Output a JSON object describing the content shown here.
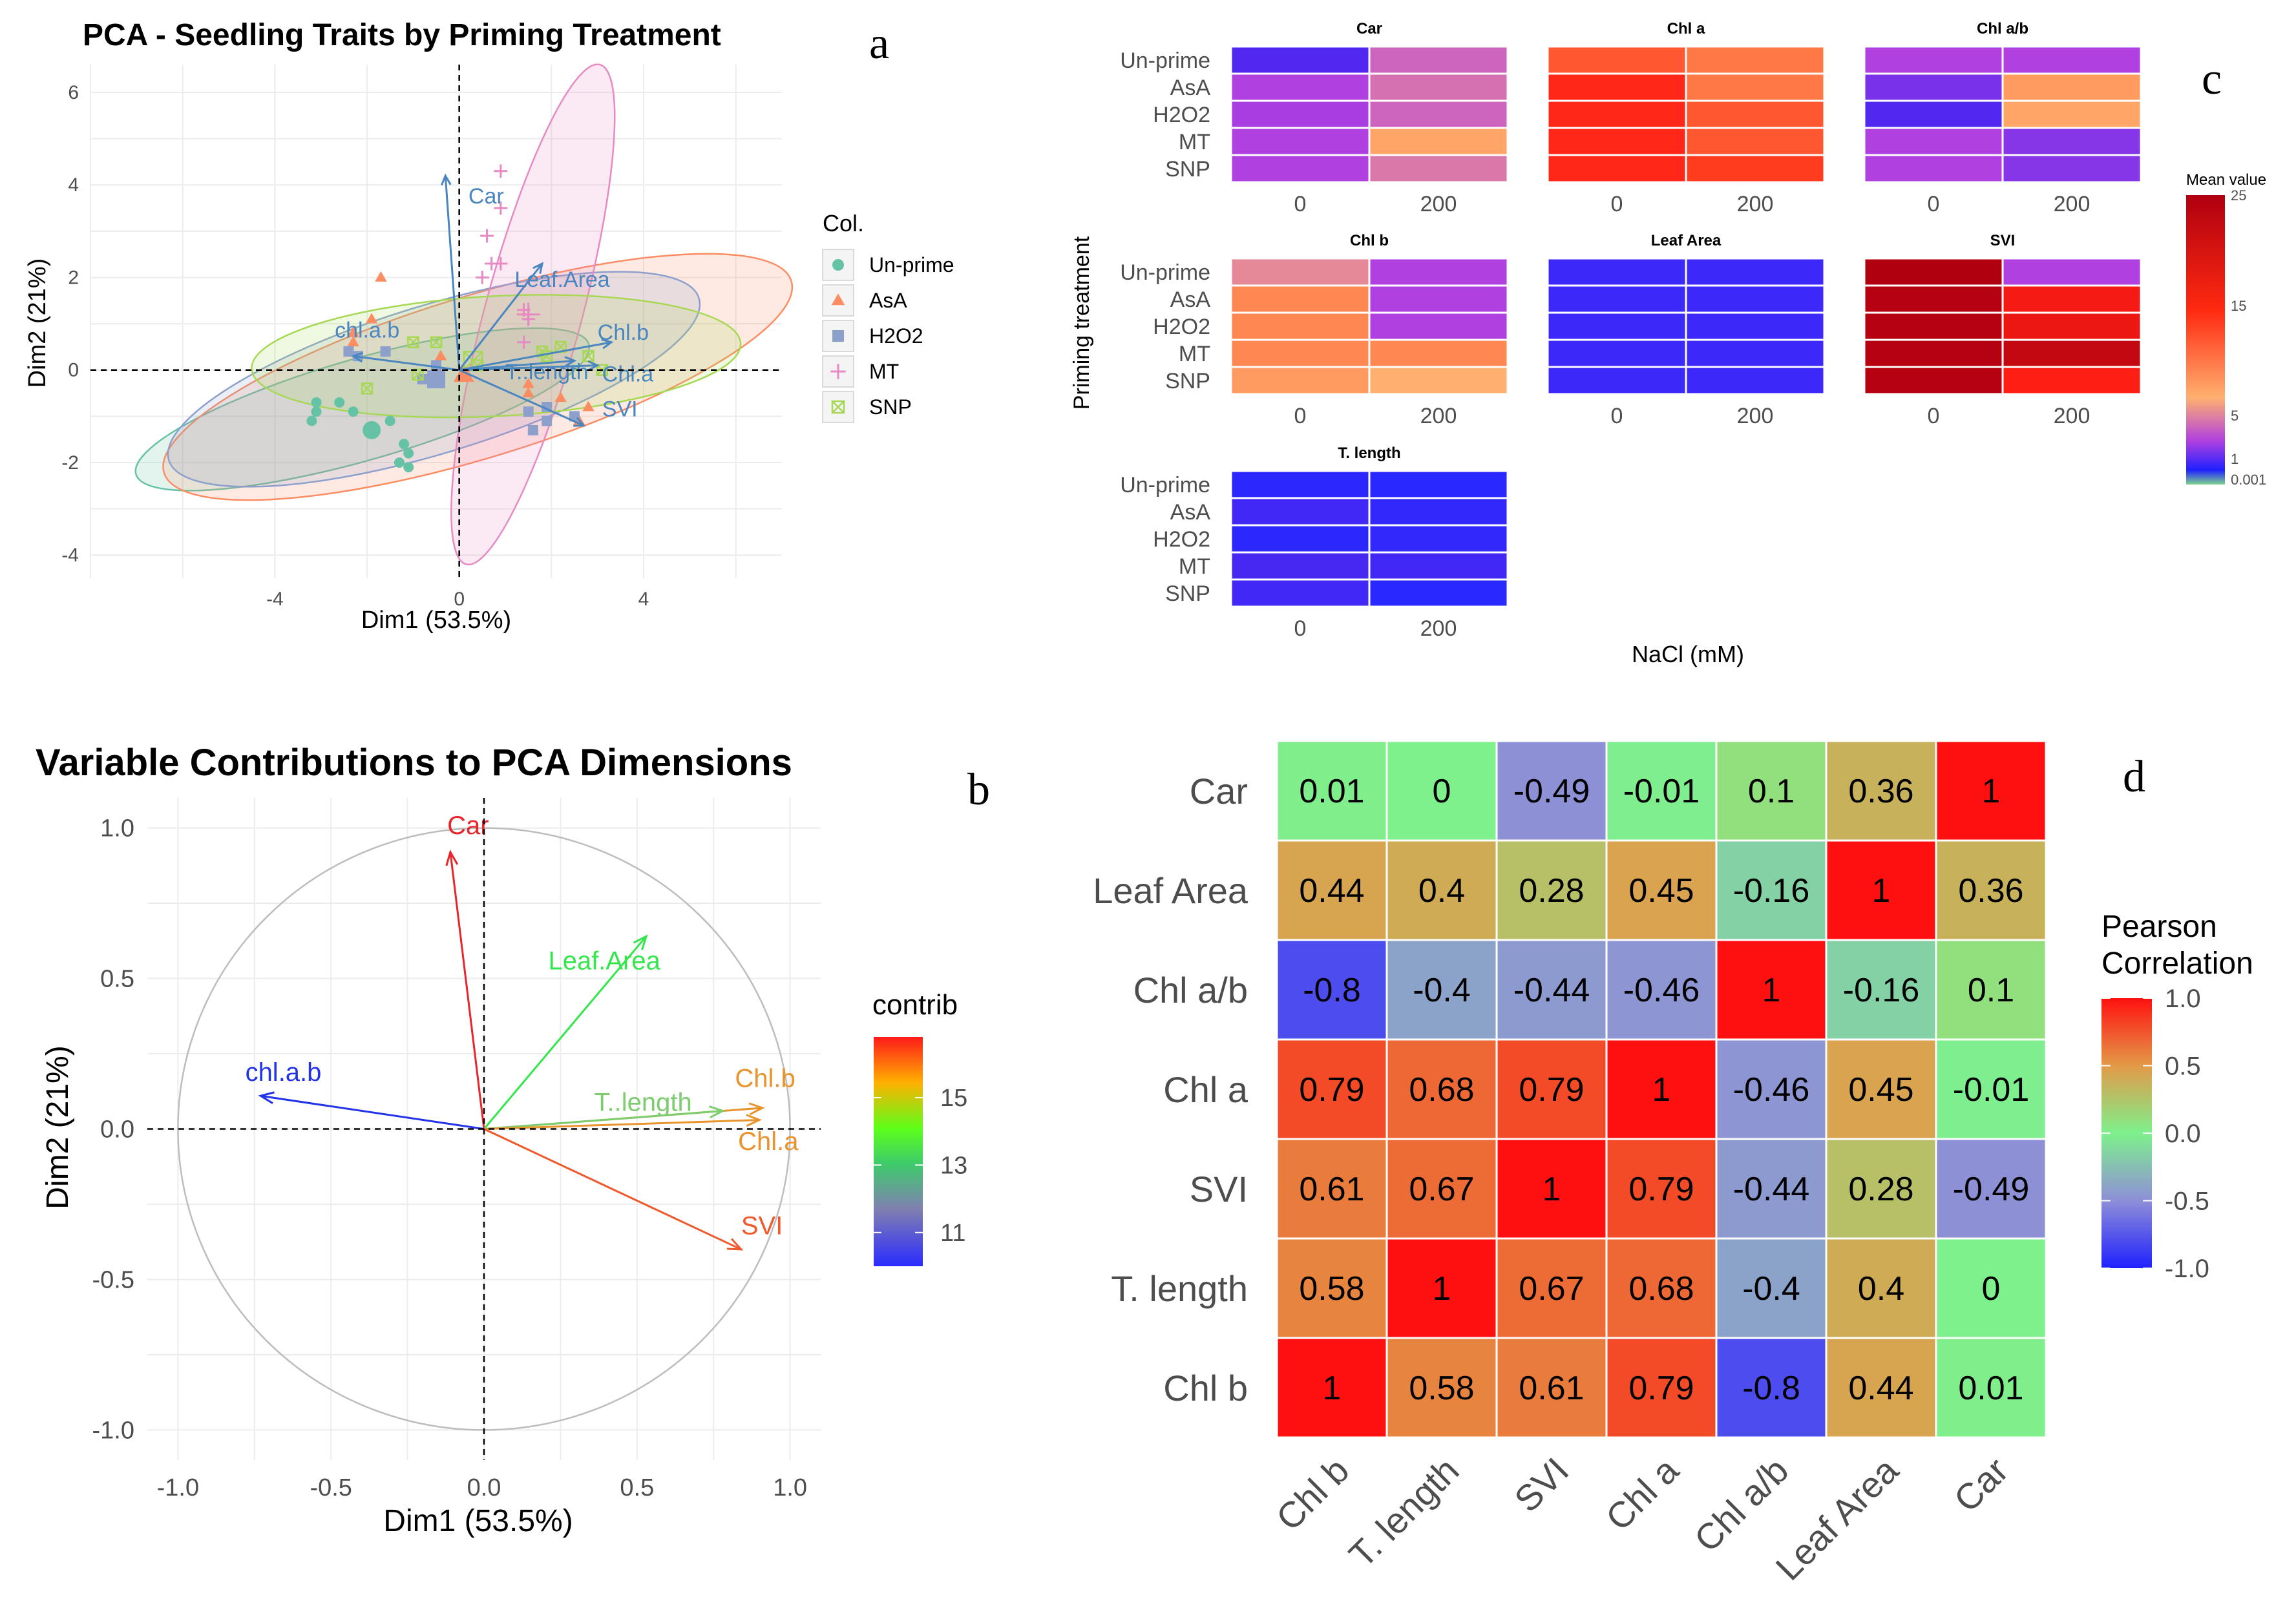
{
  "panel_labels": {
    "a": "a",
    "b": "b",
    "c": "c",
    "d": "d"
  },
  "colors": {
    "unprime": "#66c2a5",
    "asa": "#fc8d62",
    "h2o2": "#8da0cb",
    "mt": "#e78ac3",
    "snp": "#a6d854",
    "pca_arrow": "#4a86c0",
    "grid": "#ebebeb",
    "circle": "#bdbdbd"
  },
  "chart_data": [
    {
      "id": "a",
      "type": "scatter",
      "title": "PCA - Seedling Traits by Priming Treatment",
      "xlabel": "Dim1 (53.5%)",
      "ylabel": "Dim2 (21%)",
      "xlim": [
        -8,
        7
      ],
      "ylim": [
        -4.5,
        6.6
      ],
      "xticks": [
        -4,
        0,
        4
      ],
      "yticks": [
        -4,
        -2,
        0,
        2,
        4,
        6
      ],
      "xtick_labels": [
        "-4",
        "0",
        "4"
      ],
      "ytick_labels": [
        "-4",
        "-2",
        "0",
        "2",
        "4",
        "6"
      ],
      "legend": {
        "title": "Col.",
        "position": "right",
        "entries": [
          "Un-prime",
          "AsA",
          "H2O2",
          "MT",
          "SNP"
        ]
      },
      "groups": [
        {
          "name": "Un-prime",
          "color": "#66c2a5",
          "shape": "circle",
          "points": [
            [
              -3.1,
              -0.7
            ],
            [
              -3.1,
              -0.9
            ],
            [
              -3.2,
              -1.1
            ],
            [
              -1.5,
              -1.1
            ],
            [
              -1.2,
              -1.6
            ],
            [
              -1.1,
              -1.8
            ],
            [
              -1.1,
              -2.1
            ],
            [
              -1.3,
              -2
            ],
            [
              -2.6,
              -0.7
            ],
            [
              -2.3,
              -0.9
            ]
          ],
          "mean": [
            -1.9,
            -1.3
          ],
          "ellipse": {
            "cx": -2.1,
            "cy": -0.85,
            "rx": 5.1,
            "ry": 1.1,
            "angle_deg": -16
          }
        },
        {
          "name": "AsA",
          "color": "#fc8d62",
          "shape": "triangle",
          "points": [
            [
              -1.7,
              2
            ],
            [
              -2.3,
              0.8
            ],
            [
              -2.3,
              0.6
            ],
            [
              -1.9,
              1.1
            ],
            [
              1.5,
              -0.5
            ],
            [
              2.2,
              -0.6
            ],
            [
              2.8,
              -0.8
            ],
            [
              2.6,
              -1.1
            ],
            [
              1.5,
              -0.3
            ],
            [
              -0.4,
              0.3
            ]
          ],
          "mean": [
            0.1,
            -0.1
          ],
          "ellipse": {
            "cx": 0.4,
            "cy": -0.15,
            "rx": 7.1,
            "ry": 1.75,
            "angle_deg": -17
          }
        },
        {
          "name": "H2O2",
          "color": "#8da0cb",
          "shape": "square",
          "points": [
            [
              -2.4,
              0.4
            ],
            [
              -2.2,
              0.3
            ],
            [
              -0.5,
              0.1
            ],
            [
              1.5,
              -0.9
            ],
            [
              1.9,
              -0.8
            ],
            [
              2.5,
              -1.0
            ],
            [
              1.6,
              -1.3
            ],
            [
              1.9,
              -1.1
            ],
            [
              -1.6,
              0.4
            ],
            [
              -0.8,
              -0.2
            ]
          ],
          "mean": [
            -0.5,
            -0.2
          ],
          "ellipse": {
            "cx": -0.55,
            "cy": -0.2,
            "rx": 6.0,
            "ry": 1.6,
            "angle_deg": -17
          }
        },
        {
          "name": "MT",
          "color": "#e78ac3",
          "shape": "plus",
          "points": [
            [
              0.9,
              4.3
            ],
            [
              0.9,
              3.5
            ],
            [
              0.6,
              2.9
            ],
            [
              0.7,
              2.3
            ],
            [
              0.5,
              2.0
            ],
            [
              0.9,
              2.3
            ],
            [
              1.5,
              1.1
            ],
            [
              1.4,
              0.6
            ],
            [
              1.5,
              1.2
            ],
            [
              1.4,
              1.3
            ]
          ],
          "mean": [
            1.5,
            1.2
          ],
          "ellipse": {
            "cx": 1.6,
            "cy": 1.2,
            "rx": 5.6,
            "ry": 1.05,
            "angle_deg": -75
          }
        },
        {
          "name": "SNP",
          "color": "#a6d854",
          "shape": "boxx",
          "points": [
            [
              -1.0,
              0.6
            ],
            [
              -0.5,
              0.6
            ],
            [
              -2.0,
              -0.4
            ],
            [
              -0.9,
              -0.1
            ],
            [
              0.4,
              0.1
            ],
            [
              1.8,
              0.4
            ],
            [
              2.2,
              0.5
            ],
            [
              2.8,
              0.3
            ],
            [
              3.1,
              0
            ],
            [
              1.9,
              0.3
            ]
          ],
          "mean": [
            0.3,
            0.2
          ],
          "ellipse": {
            "cx": 0.8,
            "cy": 0.3,
            "rx": 5.3,
            "ry": 1.3,
            "angle_deg": -3
          }
        }
      ],
      "loadings": [
        {
          "name": "Car",
          "x": -0.3,
          "y": 4.2,
          "lx": 0.2,
          "ly": 3.6
        },
        {
          "name": "Leaf.Area",
          "x": 1.8,
          "y": 2.3,
          "lx": 1.2,
          "ly": 1.8
        },
        {
          "name": "chl.a.b",
          "x": -2.3,
          "y": 0.3,
          "lx": -2.7,
          "ly": 0.7
        },
        {
          "name": "Chl.b",
          "x": 3.3,
          "y": 0.6,
          "lx": 3.0,
          "ly": 0.65
        },
        {
          "name": "T..length",
          "x": 2.5,
          "y": 0.2,
          "lx": 1.0,
          "ly": -0.2
        },
        {
          "name": "Chl.a",
          "x": 3.0,
          "y": 0.1,
          "lx": 3.1,
          "ly": -0.25
        },
        {
          "name": "SVI",
          "x": 2.7,
          "y": -1.2,
          "lx": 3.1,
          "ly": -1.0
        }
      ]
    },
    {
      "id": "b",
      "type": "line",
      "title": "Variable Contributions to PCA Dimensions",
      "xlabel": "Dim1 (53.5%)",
      "ylabel": "Dim2 (21%)",
      "xlim": [
        -1.1,
        1.1
      ],
      "ylim": [
        -1.1,
        1.1
      ],
      "xticks": [
        -1.0,
        -0.5,
        0.0,
        0.5,
        1.0
      ],
      "yticks": [
        -1.0,
        -0.5,
        0.0,
        0.5,
        1.0
      ],
      "xtick_labels": [
        "-1.0",
        "-0.5",
        "0.0",
        "0.5",
        "1.0"
      ],
      "ytick_labels": [
        "-1.0",
        "-0.5",
        "0.0",
        "0.5",
        "1.0"
      ],
      "legend": {
        "title": "contrib",
        "position": "right",
        "ticks": [
          "15",
          "13",
          "11"
        ],
        "tick_values": [
          15,
          13,
          11
        ],
        "range": [
          10,
          16.8
        ]
      },
      "vectors": [
        {
          "name": "Car",
          "x": -0.11,
          "y": 0.92,
          "contrib": 16.6,
          "color": "#e8252b"
        },
        {
          "name": "Leaf.Area",
          "x": 0.53,
          "y": 0.64,
          "contrib": 13.6,
          "color": "#33e64c"
        },
        {
          "name": "chl.a.b",
          "x": -0.73,
          "y": 0.11,
          "contrib": 10.2,
          "color": "#2333e8"
        },
        {
          "name": "Chl.b",
          "x": 0.91,
          "y": 0.07,
          "contrib": 15.0,
          "color": "#e8932b"
        },
        {
          "name": "T..length",
          "x": 0.78,
          "y": 0.06,
          "contrib": 13.4,
          "color": "#7ccd6e"
        },
        {
          "name": "Chl.a",
          "x": 0.9,
          "y": 0.03,
          "contrib": 14.8,
          "color": "#e8932b"
        },
        {
          "name": "SVI",
          "x": 0.84,
          "y": -0.4,
          "contrib": 16.0,
          "color": "#ef5a2d"
        }
      ]
    },
    {
      "id": "c",
      "type": "heatmap",
      "ylabel": "Priming treatment",
      "xlabel": "NaCl (mM)",
      "rows": [
        "Un-prime",
        "AsA",
        "H2O2",
        "MT",
        "SNP"
      ],
      "cols": [
        "0",
        "200"
      ],
      "legend": {
        "title": "Mean value",
        "ticks": [
          "25",
          "15",
          "5",
          "1",
          "0.001"
        ]
      },
      "facets": [
        {
          "name": "Car",
          "values": [
            [
              0.3,
              2.5
            ],
            [
              1.0,
              2.8
            ],
            [
              0.9,
              2.5
            ],
            [
              1.0,
              5.5
            ],
            [
              1.0,
              3.0
            ]
          ]
        },
        {
          "name": "Chl a",
          "values": [
            [
              10,
              8
            ],
            [
              14,
              8
            ],
            [
              14,
              10
            ],
            [
              14,
              10
            ],
            [
              14,
              12
            ]
          ]
        },
        {
          "name": "Chl a/b",
          "values": [
            [
              1.0,
              1.0
            ],
            [
              0.5,
              6.0
            ],
            [
              0.3,
              5.5
            ],
            [
              1.0,
              0.6
            ],
            [
              1.0,
              0.6
            ]
          ]
        },
        {
          "name": "Chl b",
          "values": [
            [
              3.5,
              1.0
            ],
            [
              7,
              1.0
            ],
            [
              7,
              1.0
            ],
            [
              7,
              7
            ],
            [
              6,
              5.0
            ]
          ]
        },
        {
          "name": "Leaf Area",
          "values": [
            [
              0.12,
              0.12
            ],
            [
              0.12,
              0.12
            ],
            [
              0.12,
              0.12
            ],
            [
              0.12,
              0.12
            ],
            [
              0.12,
              0.12
            ]
          ]
        },
        {
          "name": "SVI",
          "values": [
            [
              25,
              1.0
            ],
            [
              24,
              16
            ],
            [
              24,
              17
            ],
            [
              24,
              22
            ],
            [
              24,
              15
            ]
          ]
        },
        {
          "name": "T. length",
          "values": [
            [
              0.06,
              0.05
            ],
            [
              0.15,
              0.08
            ],
            [
              0.06,
              0.08
            ],
            [
              0.2,
              0.15
            ],
            [
              0.15,
              0.05
            ]
          ]
        }
      ]
    },
    {
      "id": "d",
      "type": "heatmap",
      "legend": {
        "title": "Pearson\nCorrelation",
        "ticks": [
          "1.0",
          "0.5",
          "0.0",
          "-0.5",
          "-1.0"
        ]
      },
      "row_labels": [
        "Car",
        "Leaf Area",
        "Chl a/b",
        "Chl a",
        "SVI",
        "T. length",
        "Chl b"
      ],
      "col_labels": [
        "Chl b",
        "T. length",
        "SVI",
        "Chl a",
        "Chl a/b",
        "Leaf Area",
        "Car"
      ],
      "values": [
        [
          0.01,
          0,
          -0.49,
          -0.01,
          0.1,
          0.36,
          1
        ],
        [
          0.44,
          0.4,
          0.28,
          0.45,
          -0.16,
          1,
          0.36
        ],
        [
          -0.8,
          -0.4,
          -0.44,
          -0.46,
          1,
          -0.16,
          0.1
        ],
        [
          0.79,
          0.68,
          0.79,
          1,
          -0.46,
          0.45,
          -0.01
        ],
        [
          0.61,
          0.67,
          1,
          0.79,
          -0.44,
          0.28,
          -0.49
        ],
        [
          0.58,
          1,
          0.67,
          0.68,
          -0.4,
          0.4,
          0
        ],
        [
          1,
          0.58,
          0.61,
          0.79,
          -0.8,
          0.44,
          0.01
        ]
      ],
      "text_values": [
        [
          "0.01",
          "0",
          "-0.49",
          "-0.01",
          "0.1",
          "0.36",
          "1"
        ],
        [
          "0.44",
          "0.4",
          "0.28",
          "0.45",
          "-0.16",
          "1",
          "0.36"
        ],
        [
          "-0.8",
          "-0.4",
          "-0.44",
          "-0.46",
          "1",
          "-0.16",
          "0.1"
        ],
        [
          "0.79",
          "0.68",
          "0.79",
          "1",
          "-0.46",
          "0.45",
          "-0.01"
        ],
        [
          "0.61",
          "0.67",
          "1",
          "0.79",
          "-0.44",
          "0.28",
          "-0.49"
        ],
        [
          "0.58",
          "1",
          "0.67",
          "0.68",
          "-0.4",
          "0.4",
          "0"
        ],
        [
          "1",
          "0.58",
          "0.61",
          "0.79",
          "-0.8",
          "0.44",
          "0.01"
        ]
      ]
    }
  ]
}
